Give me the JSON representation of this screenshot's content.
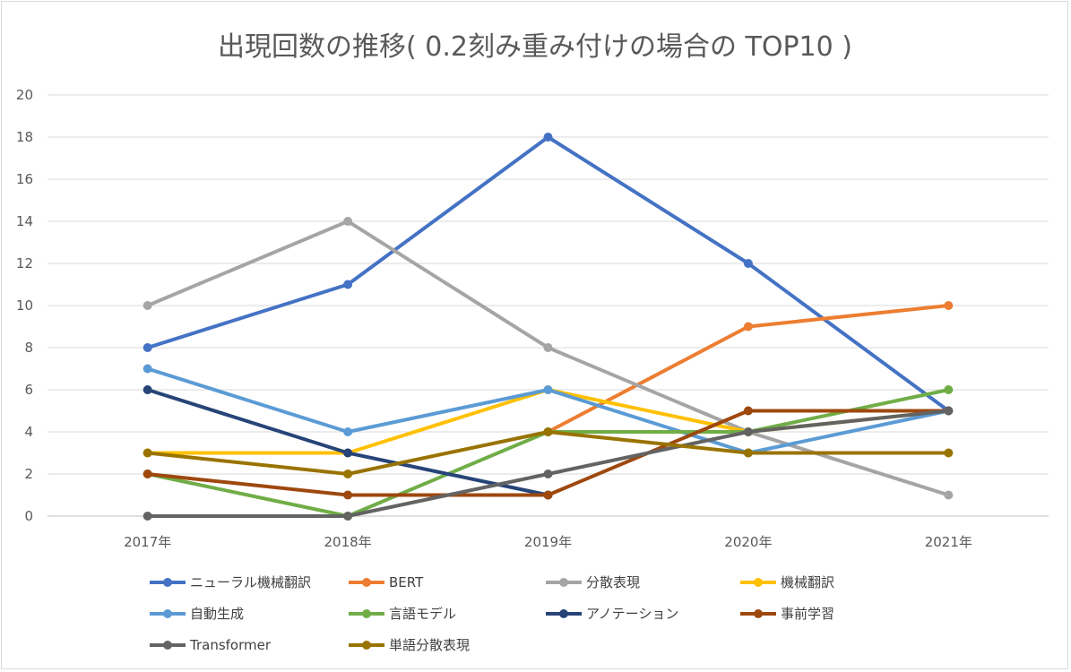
{
  "chart_data": {
    "type": "line",
    "title": "出現回数の推移( 0.2刻み重み付けの場合の TOP10 )",
    "xlabel": "",
    "ylabel": "",
    "categories": [
      "2017年",
      "2018年",
      "2019年",
      "2020年",
      "2021年"
    ],
    "ylim": [
      0,
      20
    ],
    "yticks": [
      "0",
      "2",
      "4",
      "6",
      "8",
      "10",
      "12",
      "14",
      "16",
      "18",
      "20"
    ],
    "grid": true,
    "legend_position": "bottom",
    "series": [
      {
        "name": "ニューラル機械翻訳",
        "color": "#4472c4",
        "values": [
          8,
          11,
          18,
          12,
          5
        ]
      },
      {
        "name": "BERT",
        "color": "#ed7d31",
        "values": [
          null,
          null,
          4,
          9,
          10
        ]
      },
      {
        "name": "分散表現",
        "color": "#a5a5a5",
        "values": [
          10,
          14,
          8,
          4,
          1
        ]
      },
      {
        "name": "機械翻訳",
        "color": "#ffc000",
        "values": [
          3,
          3,
          6,
          4,
          5
        ]
      },
      {
        "name": "自動生成",
        "color": "#5b9bd5",
        "values": [
          7,
          4,
          6,
          3,
          5
        ]
      },
      {
        "name": "言語モデル",
        "color": "#70ad47",
        "values": [
          2,
          0,
          4,
          4,
          6
        ]
      },
      {
        "name": "アノテーション",
        "color": "#264478",
        "values": [
          6,
          3,
          1,
          null,
          null
        ]
      },
      {
        "name": "事前学習",
        "color": "#9e480e",
        "values": [
          2,
          1,
          1,
          5,
          5
        ]
      },
      {
        "name": "Transformer",
        "color": "#636363",
        "values": [
          0,
          0,
          2,
          4,
          5
        ]
      },
      {
        "name": "単語分散表現",
        "color": "#997300",
        "values": [
          3,
          2,
          4,
          3,
          3
        ]
      }
    ]
  }
}
